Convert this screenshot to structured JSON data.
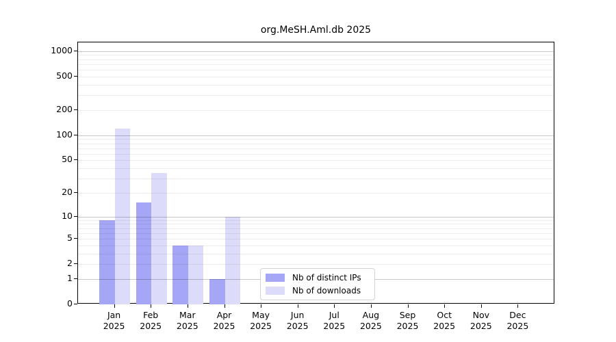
{
  "figure": {
    "background": "#ffffff"
  },
  "chart_data": {
    "type": "bar",
    "title": "org.MeSH.Aml.db 2025",
    "categories": [
      "Jan",
      "Feb",
      "Mar",
      "Apr",
      "May",
      "Jun",
      "Jul",
      "Aug",
      "Sep",
      "Oct",
      "Nov",
      "Dec"
    ],
    "category_year": "2025",
    "series": [
      {
        "name": "Nb of distinct IPs",
        "color": "#a6a6f7",
        "values": [
          9,
          15,
          4,
          1,
          0,
          0,
          0,
          0,
          0,
          0,
          0,
          0
        ]
      },
      {
        "name": "Nb of downloads",
        "color": "#dcdcfa",
        "values": [
          120,
          35,
          4,
          10,
          0,
          0,
          0,
          0,
          0,
          0,
          0,
          0
        ]
      }
    ],
    "xlabel": "",
    "ylabel": "",
    "grid": "on",
    "y_axis": {
      "scale": "log10(value+1)",
      "tick_labels": [
        1000,
        500,
        200,
        100,
        50,
        20,
        10,
        5,
        2,
        1,
        0
      ],
      "major_gridlines": [
        1,
        10,
        100,
        1000
      ],
      "minor_gridlines": [
        2,
        3,
        4,
        5,
        6,
        7,
        8,
        9,
        20,
        30,
        40,
        50,
        60,
        70,
        80,
        90,
        200,
        300,
        400,
        500,
        600,
        700,
        800,
        900
      ],
      "top_value": 1270
    },
    "legend": {
      "position": "lower-center",
      "entries": [
        "Nb of distinct IPs",
        "Nb of downloads"
      ]
    },
    "colors": {
      "grid_major": "#c7c7c7",
      "grid_minor": "#ededed",
      "axis": "#000000",
      "text": "#000000",
      "legend_border": "#d2d2d2"
    }
  }
}
